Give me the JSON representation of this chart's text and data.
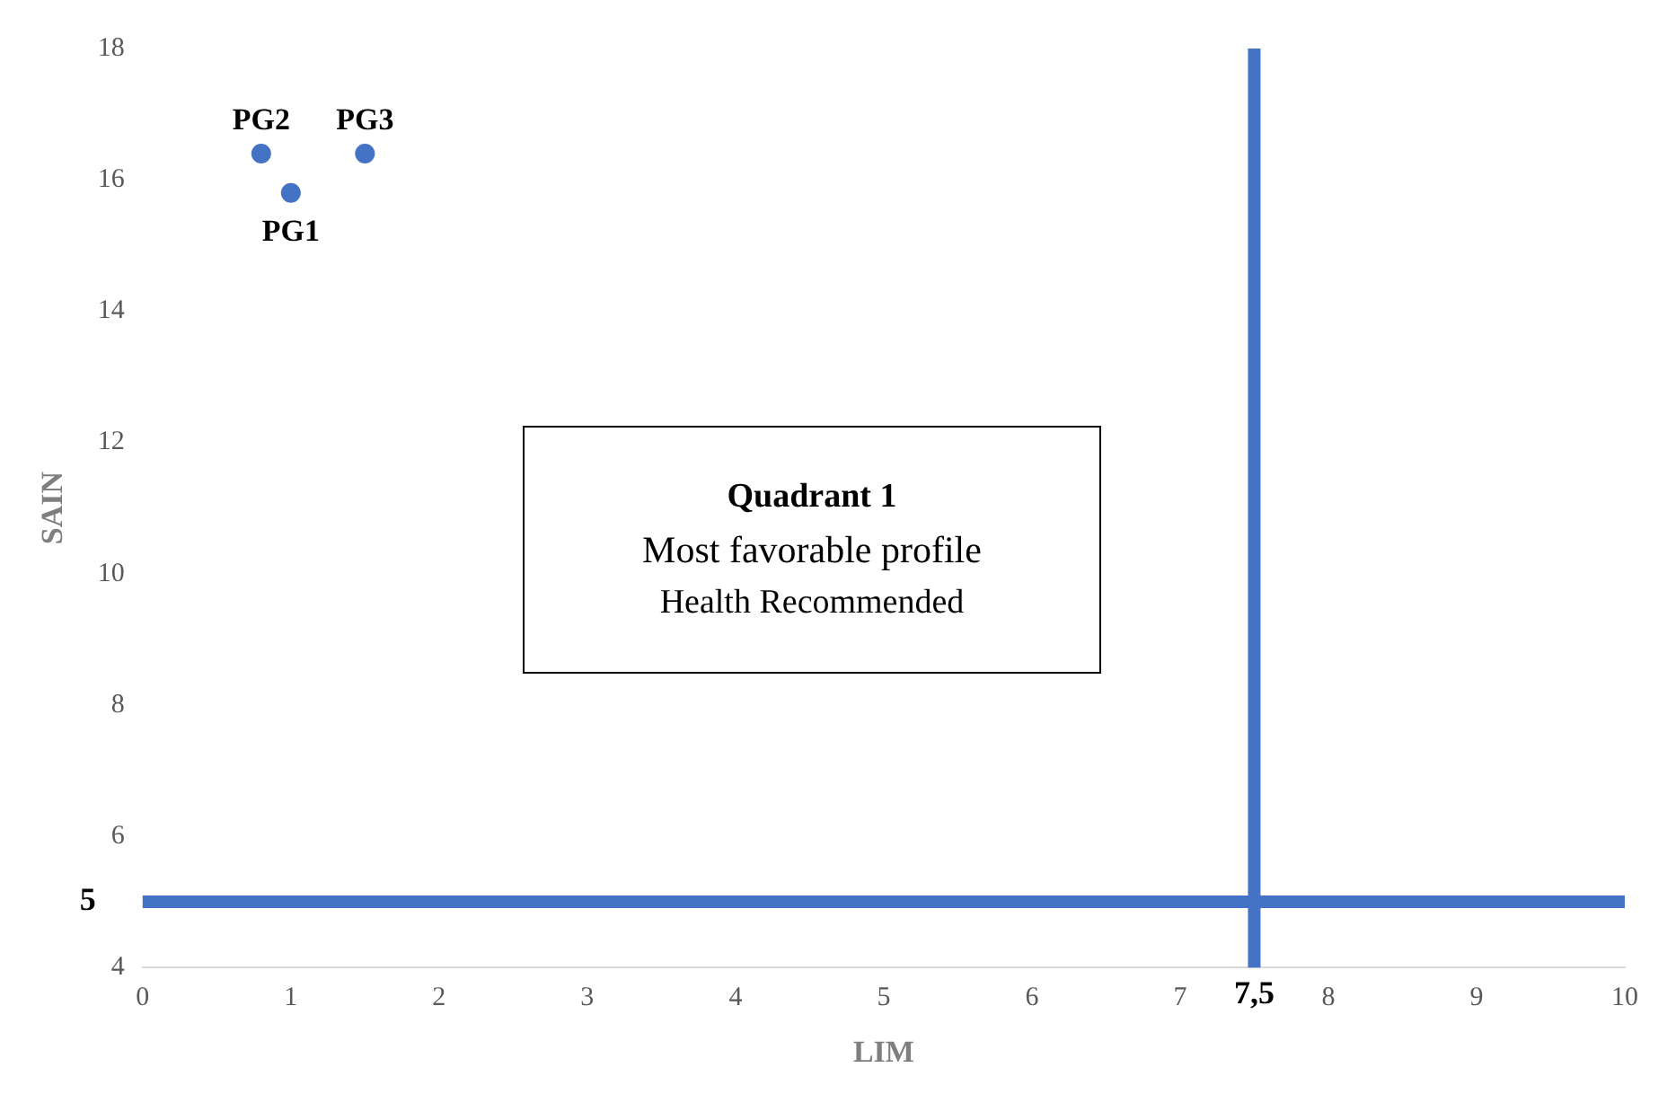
{
  "chart_data": {
    "type": "scatter",
    "xlabel": "LIM",
    "ylabel": "SAIN",
    "series": [
      {
        "name": "PG1",
        "color": "#4472c4",
        "x": [
          1.0
        ],
        "values": [
          15.8
        ]
      },
      {
        "name": "PG2",
        "color": "#4472c4",
        "x": [
          0.8
        ],
        "values": [
          16.4
        ]
      },
      {
        "name": "PG3",
        "color": "#4472c4",
        "x": [
          1.5
        ],
        "values": [
          16.4
        ]
      }
    ],
    "xlim": [
      0,
      10
    ],
    "xticks": [
      0,
      1,
      2,
      3,
      4,
      5,
      6,
      7,
      8,
      9,
      10
    ],
    "ylim": [
      4,
      18
    ],
    "yticks": [
      4,
      6,
      8,
      10,
      12,
      14,
      16,
      18
    ],
    "ref_lines": [
      {
        "axis": "x",
        "value": 7.5,
        "label": "7,5",
        "color": "#4472c4"
      },
      {
        "axis": "y",
        "value": 5,
        "label": "5",
        "color": "#4472c4"
      }
    ],
    "annotations": [
      "Quadrant 1",
      "Most favorable profile",
      "Health Recommended"
    ],
    "grid": false,
    "legend": false,
    "marker": "circle"
  }
}
